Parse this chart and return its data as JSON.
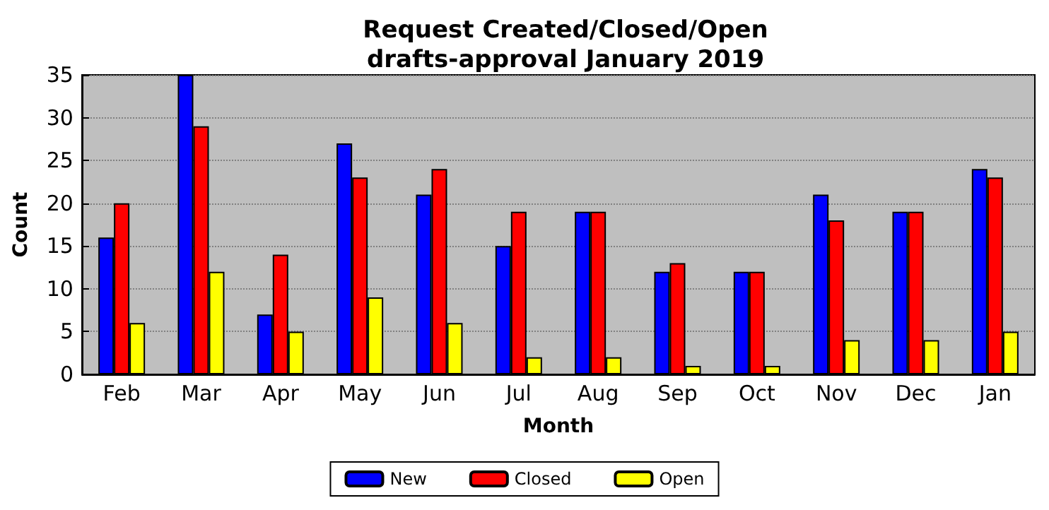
{
  "chart_data": {
    "type": "bar",
    "title": "Request Created/Closed/Open\ndrafts-approval January 2019",
    "xlabel": "Month",
    "ylabel": "Count",
    "categories": [
      "Feb",
      "Mar",
      "Apr",
      "May",
      "Jun",
      "Jul",
      "Aug",
      "Sep",
      "Oct",
      "Nov",
      "Dec",
      "Jan"
    ],
    "series": [
      {
        "name": "New",
        "color": "#0000ff",
        "values": [
          16,
          35,
          7,
          27,
          21,
          15,
          19,
          12,
          12,
          21,
          19,
          24
        ]
      },
      {
        "name": "Closed",
        "color": "#ff0000",
        "values": [
          20,
          29,
          14,
          23,
          24,
          19,
          19,
          13,
          12,
          18,
          19,
          23
        ]
      },
      {
        "name": "Open",
        "color": "#ffff00",
        "values": [
          6,
          12,
          5,
          9,
          6,
          2,
          2,
          1,
          1,
          4,
          4,
          5
        ]
      }
    ],
    "ylim": [
      0,
      35
    ],
    "yticks": [
      0,
      5,
      10,
      15,
      20,
      25,
      30,
      35
    ],
    "grid": "y",
    "legend": "bottom"
  }
}
